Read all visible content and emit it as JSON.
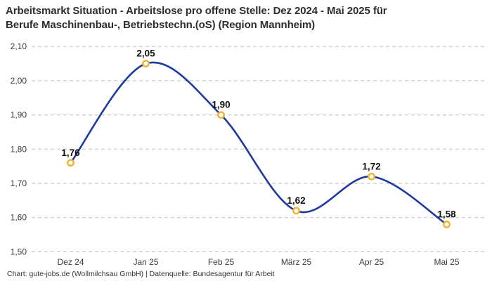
{
  "header": {
    "title_line1": "Arbeitsmarkt Situation - Arbeitslose pro offene Stelle: Dez 2024 - Mai 2025 für",
    "title_line2": "Berufe Maschinenbau-, Betriebstechn.(oS) (Region Mannheim)"
  },
  "footer": {
    "attribution": "Chart: gute-jobs.de (Wollmilchsau GmbH) | Datenquelle: Bundesagentur für Arbeit"
  },
  "chart_data": {
    "type": "line",
    "title": "Arbeitsmarkt Situation - Arbeitslose pro offene Stelle: Dez 2024 - Mai 2025 für Berufe Maschinenbau-, Betriebstechn.(oS) (Region Mannheim)",
    "categories": [
      "Dez 24",
      "Jan 25",
      "Feb 25",
      "März 25",
      "Apr 25",
      "Mai 25"
    ],
    "values": [
      1.76,
      2.05,
      1.9,
      1.62,
      1.72,
      1.58
    ],
    "value_labels": [
      "1,76",
      "2,05",
      "1,90",
      "1,62",
      "1,72",
      "1,58"
    ],
    "series_name": "Arbeitslose pro offene Stelle",
    "xlabel": "",
    "ylabel": "",
    "ylim": [
      1.5,
      2.1
    ],
    "y_ticks": [
      {
        "value": 1.5,
        "label": "1,50"
      },
      {
        "value": 1.6,
        "label": "1,60"
      },
      {
        "value": 1.7,
        "label": "1,70"
      },
      {
        "value": 1.8,
        "label": "1,80"
      },
      {
        "value": 1.9,
        "label": "1,90"
      },
      {
        "value": 2.0,
        "label": "2,00"
      },
      {
        "value": 2.1,
        "label": "2,10"
      }
    ],
    "grid": "horizontal-dashed",
    "legend_position": "none",
    "curve": "smooth",
    "colors": {
      "line": "#1e3a9f",
      "marker_stroke": "#f2b134",
      "marker_fill": "#ffffff",
      "grid": "#c8c8c8",
      "point_label": "#111111",
      "tick_label": "#3a3a3a",
      "title": "#2d2d2d",
      "background": "#ffffff"
    }
  }
}
